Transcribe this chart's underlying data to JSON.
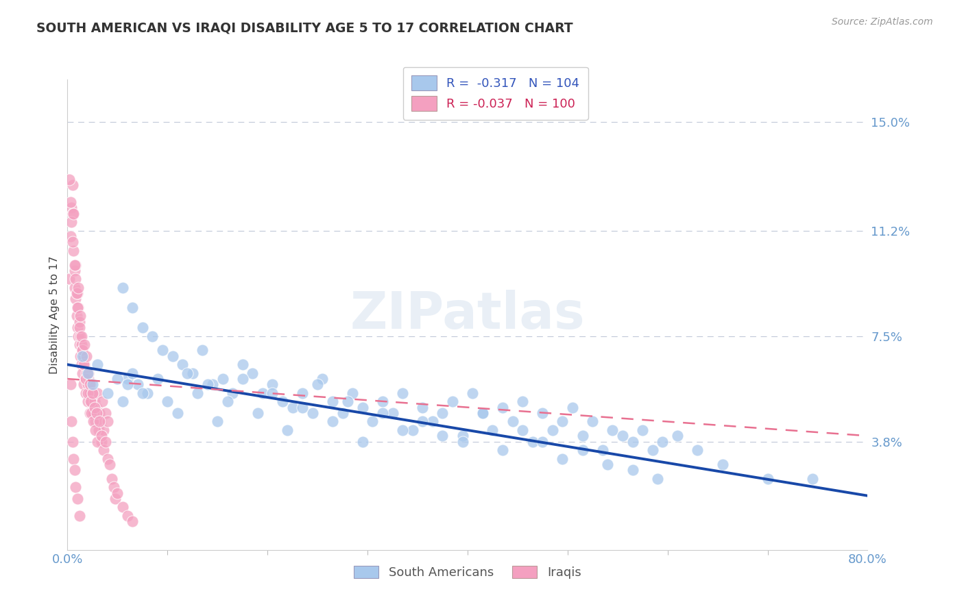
{
  "title": "SOUTH AMERICAN VS IRAQI DISABILITY AGE 5 TO 17 CORRELATION CHART",
  "source_text": "Source: ZipAtlas.com",
  "ylabel": "Disability Age 5 to 17",
  "xlim": [
    0.0,
    0.8
  ],
  "ylim": [
    0.0,
    0.165
  ],
  "xtick_positions": [
    0.0,
    0.8
  ],
  "xticklabels": [
    "0.0%",
    "80.0%"
  ],
  "ytick_positions": [
    0.038,
    0.075,
    0.112,
    0.15
  ],
  "ytick_labels": [
    "3.8%",
    "7.5%",
    "11.2%",
    "15.0%"
  ],
  "r_south_american": -0.317,
  "n_south_american": 104,
  "r_iraqi": -0.037,
  "n_iraqi": 100,
  "blue_scatter_color": "#A8C8EC",
  "pink_scatter_color": "#F4A0C0",
  "blue_line_color": "#1848A8",
  "pink_line_color": "#E87090",
  "legend_label_south": "South Americans",
  "legend_label_iraqi": "Iraqis",
  "watermark": "ZIPatlas",
  "axis_label_color": "#6699CC",
  "title_color": "#333333",
  "source_color": "#999999",
  "legend_r_color_blue": "#3355BB",
  "legend_n_color_blue": "#3355BB",
  "legend_r_color_pink": "#CC2255",
  "legend_n_color_pink": "#CC2255",
  "sa_line_start_y": 0.065,
  "sa_line_end_y": 0.019,
  "iq_line_start_y": 0.06,
  "iq_line_end_y": 0.04,
  "south_american_x": [
    0.055,
    0.065,
    0.075,
    0.085,
    0.095,
    0.105,
    0.115,
    0.125,
    0.135,
    0.145,
    0.155,
    0.165,
    0.175,
    0.185,
    0.195,
    0.205,
    0.215,
    0.225,
    0.235,
    0.245,
    0.255,
    0.265,
    0.275,
    0.285,
    0.295,
    0.305,
    0.315,
    0.325,
    0.335,
    0.345,
    0.355,
    0.365,
    0.375,
    0.385,
    0.395,
    0.405,
    0.415,
    0.425,
    0.435,
    0.445,
    0.455,
    0.465,
    0.475,
    0.485,
    0.495,
    0.505,
    0.515,
    0.525,
    0.535,
    0.545,
    0.555,
    0.565,
    0.575,
    0.585,
    0.595,
    0.61,
    0.63,
    0.655,
    0.7,
    0.745,
    0.06,
    0.07,
    0.08,
    0.09,
    0.1,
    0.11,
    0.12,
    0.13,
    0.14,
    0.15,
    0.16,
    0.175,
    0.19,
    0.205,
    0.22,
    0.235,
    0.25,
    0.265,
    0.28,
    0.295,
    0.315,
    0.335,
    0.355,
    0.375,
    0.395,
    0.415,
    0.435,
    0.455,
    0.475,
    0.495,
    0.515,
    0.54,
    0.565,
    0.59,
    0.015,
    0.02,
    0.025,
    0.03,
    0.04,
    0.05,
    0.055,
    0.06,
    0.065,
    0.075
  ],
  "south_american_y": [
    0.092,
    0.085,
    0.078,
    0.075,
    0.07,
    0.068,
    0.065,
    0.062,
    0.07,
    0.058,
    0.06,
    0.055,
    0.065,
    0.062,
    0.055,
    0.058,
    0.052,
    0.05,
    0.055,
    0.048,
    0.06,
    0.052,
    0.048,
    0.055,
    0.05,
    0.045,
    0.052,
    0.048,
    0.055,
    0.042,
    0.05,
    0.045,
    0.048,
    0.052,
    0.04,
    0.055,
    0.048,
    0.042,
    0.05,
    0.045,
    0.052,
    0.038,
    0.048,
    0.042,
    0.045,
    0.05,
    0.04,
    0.045,
    0.035,
    0.042,
    0.04,
    0.038,
    0.042,
    0.035,
    0.038,
    0.04,
    0.035,
    0.03,
    0.025,
    0.025,
    0.06,
    0.058,
    0.055,
    0.06,
    0.052,
    0.048,
    0.062,
    0.055,
    0.058,
    0.045,
    0.052,
    0.06,
    0.048,
    0.055,
    0.042,
    0.05,
    0.058,
    0.045,
    0.052,
    0.038,
    0.048,
    0.042,
    0.045,
    0.04,
    0.038,
    0.048,
    0.035,
    0.042,
    0.038,
    0.032,
    0.035,
    0.03,
    0.028,
    0.025,
    0.068,
    0.062,
    0.058,
    0.065,
    0.055,
    0.06,
    0.052,
    0.058,
    0.062,
    0.055
  ],
  "iraqi_x": [
    0.002,
    0.003,
    0.004,
    0.005,
    0.005,
    0.006,
    0.007,
    0.007,
    0.008,
    0.008,
    0.009,
    0.01,
    0.01,
    0.011,
    0.011,
    0.012,
    0.012,
    0.013,
    0.013,
    0.014,
    0.014,
    0.015,
    0.015,
    0.016,
    0.016,
    0.017,
    0.018,
    0.018,
    0.019,
    0.02,
    0.02,
    0.021,
    0.022,
    0.022,
    0.023,
    0.024,
    0.025,
    0.026,
    0.027,
    0.028,
    0.029,
    0.03,
    0.031,
    0.032,
    0.033,
    0.034,
    0.035,
    0.036,
    0.038,
    0.04,
    0.002,
    0.003,
    0.004,
    0.005,
    0.006,
    0.007,
    0.008,
    0.009,
    0.01,
    0.011,
    0.012,
    0.013,
    0.014,
    0.015,
    0.016,
    0.017,
    0.018,
    0.019,
    0.02,
    0.021,
    0.022,
    0.023,
    0.024,
    0.025,
    0.026,
    0.027,
    0.028,
    0.029,
    0.03,
    0.032,
    0.034,
    0.036,
    0.038,
    0.04,
    0.042,
    0.044,
    0.046,
    0.048,
    0.05,
    0.055,
    0.06,
    0.065,
    0.003,
    0.004,
    0.005,
    0.006,
    0.007,
    0.008,
    0.01,
    0.012
  ],
  "iraqi_y": [
    0.095,
    0.11,
    0.12,
    0.128,
    0.118,
    0.105,
    0.098,
    0.092,
    0.088,
    0.1,
    0.082,
    0.09,
    0.078,
    0.085,
    0.075,
    0.08,
    0.072,
    0.075,
    0.068,
    0.072,
    0.065,
    0.07,
    0.062,
    0.068,
    0.058,
    0.065,
    0.06,
    0.055,
    0.062,
    0.058,
    0.052,
    0.06,
    0.055,
    0.048,
    0.058,
    0.052,
    0.055,
    0.048,
    0.052,
    0.045,
    0.05,
    0.055,
    0.042,
    0.048,
    0.045,
    0.038,
    0.052,
    0.042,
    0.048,
    0.045,
    0.13,
    0.122,
    0.115,
    0.108,
    0.118,
    0.1,
    0.095,
    0.09,
    0.085,
    0.092,
    0.078,
    0.082,
    0.075,
    0.07,
    0.065,
    0.072,
    0.06,
    0.068,
    0.055,
    0.062,
    0.058,
    0.052,
    0.048,
    0.055,
    0.045,
    0.05,
    0.042,
    0.048,
    0.038,
    0.045,
    0.04,
    0.035,
    0.038,
    0.032,
    0.03,
    0.025,
    0.022,
    0.018,
    0.02,
    0.015,
    0.012,
    0.01,
    0.058,
    0.045,
    0.038,
    0.032,
    0.028,
    0.022,
    0.018,
    0.012
  ]
}
